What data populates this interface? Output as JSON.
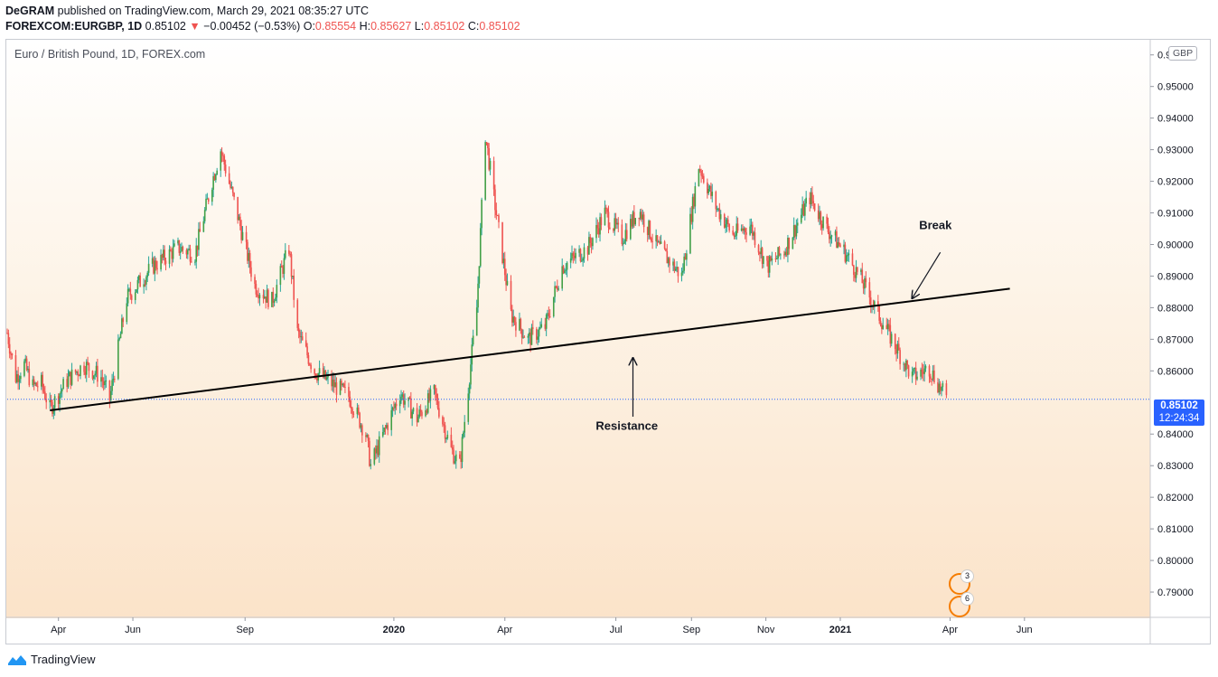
{
  "header": {
    "author": "DeGRAM",
    "published_text": "published on TradingView.com, March 29, 2021 08:35:27 UTC",
    "symbol": "FOREXCOM:EURGBP, 1D",
    "last": "0.85102",
    "arrow": "▼",
    "change": "−0.00452 (−0.53%)",
    "o_label": "O:",
    "o_value": "0.85554",
    "h_label": "H:",
    "h_value": "0.85627",
    "l_label": "L:",
    "l_value": "0.85102",
    "c_label": "C:",
    "c_value": "0.85102"
  },
  "chart_title": "Euro / British Pound, 1D, FOREX.com",
  "currency_label": "GBP",
  "price_badge": {
    "price": "0.85102",
    "countdown": "12:24:34"
  },
  "events": [
    {
      "flag": "uk-flag-icon",
      "count": "3"
    },
    {
      "flag": "eu-flag-icon",
      "count": "6"
    }
  ],
  "footer": {
    "brand": "TradingView"
  },
  "colors": {
    "up": "#26a69a",
    "down": "#ef5350",
    "accent": "#2962ff",
    "event_ring": "#f57c00"
  },
  "chart_data": {
    "type": "candlestick",
    "title": "Euro / British Pound, 1D, FOREX.com",
    "y_axis": {
      "side": "right",
      "range": [
        0.782,
        0.9645
      ],
      "ticks": [
        "0.96000",
        "0.95000",
        "0.94000",
        "0.93000",
        "0.92000",
        "0.91000",
        "0.90000",
        "0.89000",
        "0.88000",
        "0.87000",
        "0.86000",
        "0.84000",
        "0.83000",
        "0.82000",
        "0.81000",
        "0.80000",
        "0.79000"
      ]
    },
    "x_axis": {
      "ticks": [
        {
          "label": "Apr",
          "date": "2019-04-01",
          "bold": false
        },
        {
          "label": "Jun",
          "date": "2019-06-01",
          "bold": false
        },
        {
          "label": "Sep",
          "date": "2019-09-01",
          "bold": false
        },
        {
          "label": "2020",
          "date": "2020-01-01",
          "bold": true
        },
        {
          "label": "Apr",
          "date": "2020-04-01",
          "bold": false
        },
        {
          "label": "Jul",
          "date": "2020-07-01",
          "bold": false
        },
        {
          "label": "Sep",
          "date": "2020-09-01",
          "bold": false
        },
        {
          "label": "Nov",
          "date": "2020-11-01",
          "bold": false
        },
        {
          "label": "2021",
          "date": "2021-01-01",
          "bold": true
        },
        {
          "label": "Apr",
          "date": "2021-04-01",
          "bold": false
        },
        {
          "label": "Jun",
          "date": "2021-06-01",
          "bold": false
        }
      ]
    },
    "last_price": 0.85102,
    "series": [
      {
        "date": "2019-02-18",
        "close": 0.872
      },
      {
        "date": "2019-02-25",
        "close": 0.858
      },
      {
        "date": "2019-03-04",
        "close": 0.862
      },
      {
        "date": "2019-03-11",
        "close": 0.855
      },
      {
        "date": "2019-03-18",
        "close": 0.856
      },
      {
        "date": "2019-03-25",
        "close": 0.848
      },
      {
        "date": "2019-04-08",
        "close": 0.857
      },
      {
        "date": "2019-04-22",
        "close": 0.862
      },
      {
        "date": "2019-05-06",
        "close": 0.858
      },
      {
        "date": "2019-05-13",
        "close": 0.851
      },
      {
        "date": "2019-05-27",
        "close": 0.883
      },
      {
        "date": "2019-06-17",
        "close": 0.893
      },
      {
        "date": "2019-07-08",
        "close": 0.899
      },
      {
        "date": "2019-07-22",
        "close": 0.897
      },
      {
        "date": "2019-08-05",
        "close": 0.92
      },
      {
        "date": "2019-08-12",
        "close": 0.93
      },
      {
        "date": "2019-08-26",
        "close": 0.909
      },
      {
        "date": "2019-09-09",
        "close": 0.887
      },
      {
        "date": "2019-09-23",
        "close": 0.882
      },
      {
        "date": "2019-10-07",
        "close": 0.899
      },
      {
        "date": "2019-10-14",
        "close": 0.872
      },
      {
        "date": "2019-10-28",
        "close": 0.86
      },
      {
        "date": "2019-11-11",
        "close": 0.856
      },
      {
        "date": "2019-11-25",
        "close": 0.852
      },
      {
        "date": "2019-12-09",
        "close": 0.84
      },
      {
        "date": "2019-12-13",
        "close": 0.83
      },
      {
        "date": "2020-01-06",
        "close": 0.853
      },
      {
        "date": "2020-01-20",
        "close": 0.845
      },
      {
        "date": "2020-02-03",
        "close": 0.853
      },
      {
        "date": "2020-02-17",
        "close": 0.835
      },
      {
        "date": "2020-02-24",
        "close": 0.83
      },
      {
        "date": "2020-03-09",
        "close": 0.88
      },
      {
        "date": "2020-03-16",
        "close": 0.935
      },
      {
        "date": "2020-03-23",
        "close": 0.915
      },
      {
        "date": "2020-04-06",
        "close": 0.878
      },
      {
        "date": "2020-04-20",
        "close": 0.87
      },
      {
        "date": "2020-05-04",
        "close": 0.874
      },
      {
        "date": "2020-05-18",
        "close": 0.893
      },
      {
        "date": "2020-06-08",
        "close": 0.899
      },
      {
        "date": "2020-06-22",
        "close": 0.91
      },
      {
        "date": "2020-07-06",
        "close": 0.902
      },
      {
        "date": "2020-07-20",
        "close": 0.911
      },
      {
        "date": "2020-08-03",
        "close": 0.9
      },
      {
        "date": "2020-08-24",
        "close": 0.89
      },
      {
        "date": "2020-09-07",
        "close": 0.925
      },
      {
        "date": "2020-09-21",
        "close": 0.912
      },
      {
        "date": "2020-10-05",
        "close": 0.903
      },
      {
        "date": "2020-10-19",
        "close": 0.906
      },
      {
        "date": "2020-11-02",
        "close": 0.893
      },
      {
        "date": "2020-11-16",
        "close": 0.898
      },
      {
        "date": "2020-12-07",
        "close": 0.915
      },
      {
        "date": "2020-12-21",
        "close": 0.905
      },
      {
        "date": "2021-01-04",
        "close": 0.898
      },
      {
        "date": "2021-01-18",
        "close": 0.889
      },
      {
        "date": "2021-02-01",
        "close": 0.878
      },
      {
        "date": "2021-02-15",
        "close": 0.868
      },
      {
        "date": "2021-03-01",
        "close": 0.858
      },
      {
        "date": "2021-03-15",
        "close": 0.861
      },
      {
        "date": "2021-03-29",
        "close": 0.851
      }
    ],
    "annotations": [
      {
        "type": "trendline",
        "from": {
          "date": "2019-03-25",
          "price": 0.8475
        },
        "to": {
          "date": "2021-05-20",
          "price": 0.886
        },
        "color": "#000000"
      },
      {
        "type": "text",
        "text": "Resistance",
        "date": "2020-07-10",
        "price": 0.8413
      },
      {
        "type": "arrow",
        "from": {
          "date": "2020-07-15",
          "price": 0.8455
        },
        "to": {
          "date": "2020-07-15",
          "price": 0.864
        }
      },
      {
        "type": "text",
        "text": "Break",
        "date": "2021-03-20",
        "price": 0.9049
      },
      {
        "type": "arrow",
        "from": {
          "date": "2021-03-24",
          "price": 0.8975
        },
        "to": {
          "date": "2021-03-01",
          "price": 0.883
        }
      }
    ]
  }
}
